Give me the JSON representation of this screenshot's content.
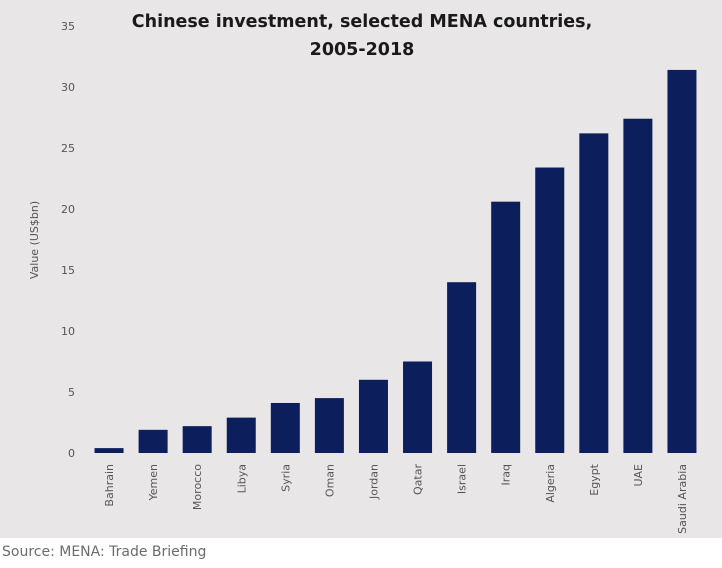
{
  "chart_data": {
    "type": "bar",
    "title": "Chinese investment, selected MENA countries, 2005-2018",
    "title_lines": [
      "Chinese investment, selected MENA countries,",
      "2005-2018"
    ],
    "xlabel": "",
    "ylabel": "Value (US$bn)",
    "ylim": [
      0,
      35
    ],
    "yticks": [
      "0",
      "5",
      "10",
      "15",
      "20",
      "25",
      "30",
      "35"
    ],
    "categories": [
      "Bahrain",
      "Yemen",
      "Morocco",
      "Libya",
      "Syria",
      "Oman",
      "Jordan",
      "Qatar",
      "Israel",
      "Iraq",
      "Algeria",
      "Egypt",
      "UAE",
      "Saudi Arabia"
    ],
    "values": [
      0.4,
      1.9,
      2.2,
      2.9,
      4.1,
      4.5,
      6.0,
      7.5,
      14.0,
      20.6,
      23.4,
      26.2,
      27.4,
      31.4
    ],
    "bar_color": "#0c1f5c",
    "background_color": "#e8e6e6",
    "grid": false,
    "legend": "none"
  },
  "source": "Source: MENA: Trade Briefing"
}
